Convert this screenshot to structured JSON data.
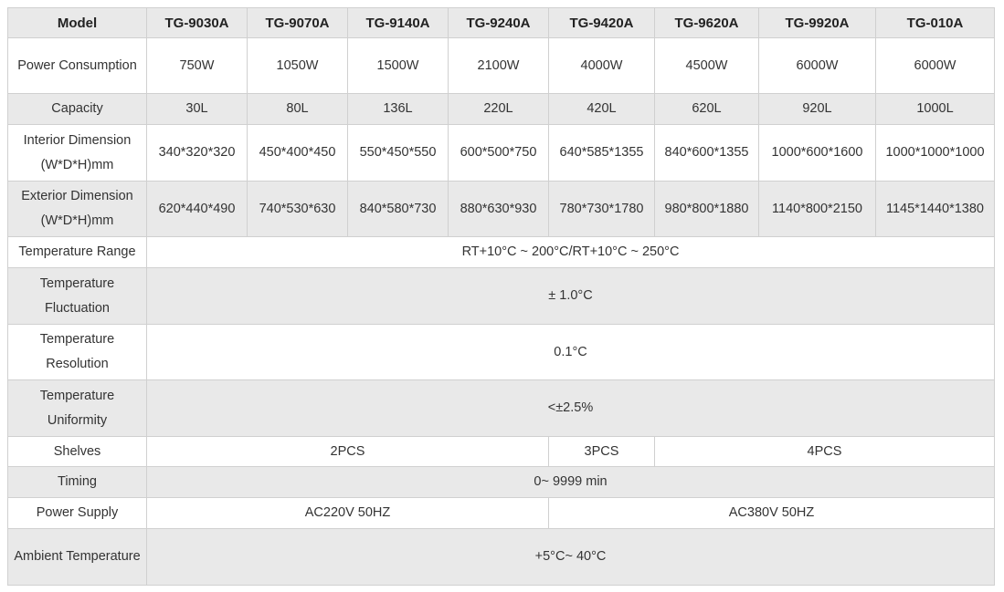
{
  "header": [
    "Model",
    "TG-9030A",
    "TG-9070A",
    "TG-9140A",
    "TG-9240A",
    "TG-9420A",
    "TG-9620A",
    "TG-9920A",
    "TG-010A"
  ],
  "rows": [
    {
      "label": "Power Consumption",
      "cells": [
        {
          "v": "750W"
        },
        {
          "v": "1050W"
        },
        {
          "v": "1500W"
        },
        {
          "v": "2100W"
        },
        {
          "v": "4000W"
        },
        {
          "v": "4500W"
        },
        {
          "v": "6000W"
        },
        {
          "v": "6000W"
        }
      ]
    },
    {
      "label": "Capacity",
      "cells": [
        {
          "v": "30L"
        },
        {
          "v": "80L"
        },
        {
          "v": "136L"
        },
        {
          "v": "220L"
        },
        {
          "v": "420L"
        },
        {
          "v": "620L"
        },
        {
          "v": "920L"
        },
        {
          "v": "1000L"
        }
      ]
    },
    {
      "label": "Interior Dimension (W*D*H)mm",
      "cells": [
        {
          "v": "340*320*320"
        },
        {
          "v": "450*400*450"
        },
        {
          "v": "550*450*550"
        },
        {
          "v": "600*500*750"
        },
        {
          "v": "640*585*1355"
        },
        {
          "v": "840*600*1355"
        },
        {
          "v": "1000*600*1600"
        },
        {
          "v": "1000*1000*1000"
        }
      ]
    },
    {
      "label": "Exterior Dimension (W*D*H)mm",
      "cells": [
        {
          "v": "620*440*490"
        },
        {
          "v": "740*530*630"
        },
        {
          "v": "840*580*730"
        },
        {
          "v": "880*630*930"
        },
        {
          "v": "780*730*1780"
        },
        {
          "v": "980*800*1880"
        },
        {
          "v": "1140*800*2150"
        },
        {
          "v": "1145*1440*1380"
        }
      ]
    },
    {
      "label": "Temperature Range",
      "cells": [
        {
          "v": "RT+10°C ~ 200°C/RT+10°C ~ 250°C",
          "span": 8
        }
      ]
    },
    {
      "label": "Temperature Fluctuation",
      "cells": [
        {
          "v": "± 1.0°C",
          "span": 8
        }
      ]
    },
    {
      "label": "Temperature Resolution",
      "cells": [
        {
          "v": "0.1°C",
          "span": 8
        }
      ]
    },
    {
      "label": "Temperature Uniformity",
      "cells": [
        {
          "v": "<±2.5%",
          "span": 8
        }
      ]
    },
    {
      "label": "Shelves",
      "cells": [
        {
          "v": "2PCS",
          "span": 4
        },
        {
          "v": "3PCS",
          "span": 1
        },
        {
          "v": "4PCS",
          "span": 3
        }
      ]
    },
    {
      "label": "Timing",
      "cells": [
        {
          "v": "0~ 9999 min",
          "span": 8
        }
      ]
    },
    {
      "label": "Power Supply",
      "cells": [
        {
          "v": "AC220V 50HZ",
          "span": 4
        },
        {
          "v": "AC380V 50HZ",
          "span": 4
        }
      ]
    },
    {
      "label": "Ambient Temperature",
      "cells": [
        {
          "v": "+5°C~ 40°C",
          "span": 8
        }
      ]
    }
  ],
  "colors": {
    "stripe": "#e9e9e9",
    "border": "#d0d0d0",
    "text": "#333333"
  }
}
